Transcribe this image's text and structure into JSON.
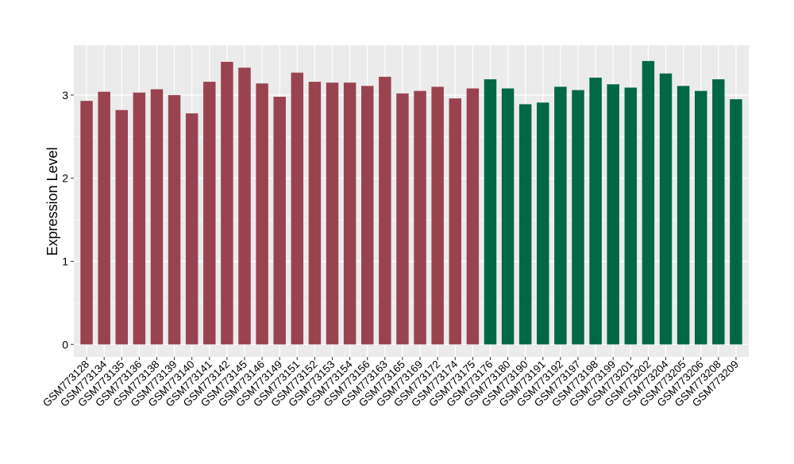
{
  "chart_data": {
    "type": "bar",
    "title": "",
    "xlabel": "",
    "ylabel": "Expression Level",
    "ylim": [
      -0.15,
      3.6
    ],
    "yticks": [
      0,
      1,
      2,
      3
    ],
    "grid": true,
    "legend": "none",
    "colors": {
      "group1": "#9A4350",
      "group2": "#006747",
      "panel_bg": "#EBEBEB",
      "grid": "#FFFFFF"
    },
    "categories": [
      "GSM773128",
      "GSM773134",
      "GSM773135",
      "GSM773136",
      "GSM773138",
      "GSM773139",
      "GSM773140",
      "GSM773141",
      "GSM773142",
      "GSM773145",
      "GSM773146",
      "GSM773149",
      "GSM773151",
      "GSM773152",
      "GSM773153",
      "GSM773154",
      "GSM773156",
      "GSM773163",
      "GSM773165",
      "GSM773169",
      "GSM773172",
      "GSM773174",
      "GSM773175",
      "GSM773176",
      "GSM773180",
      "GSM773190",
      "GSM773191",
      "GSM773192",
      "GSM773197",
      "GSM773198",
      "GSM773199",
      "GSM773201",
      "GSM773202",
      "GSM773204",
      "GSM773205",
      "GSM773206",
      "GSM773208",
      "GSM773209"
    ],
    "values": [
      2.93,
      3.04,
      2.82,
      3.03,
      3.07,
      3.0,
      2.78,
      3.16,
      3.4,
      3.33,
      3.14,
      2.98,
      3.27,
      3.16,
      3.15,
      3.15,
      3.11,
      3.22,
      3.02,
      3.05,
      3.1,
      2.96,
      3.08,
      3.19,
      3.08,
      2.89,
      2.91,
      3.1,
      3.06,
      3.21,
      3.13,
      3.09,
      3.41,
      3.26,
      3.11,
      3.05,
      3.19,
      2.95
    ],
    "groups": [
      1,
      1,
      1,
      1,
      1,
      1,
      1,
      1,
      1,
      1,
      1,
      1,
      1,
      1,
      1,
      1,
      1,
      1,
      1,
      1,
      1,
      1,
      1,
      2,
      2,
      2,
      2,
      2,
      2,
      2,
      2,
      2,
      2,
      2,
      2,
      2,
      2,
      2
    ]
  }
}
